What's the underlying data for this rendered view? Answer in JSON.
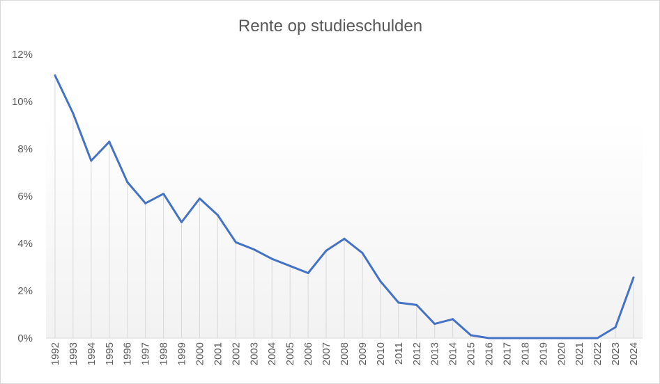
{
  "chart_data": {
    "type": "area",
    "title": "Rente op studieschulden",
    "xlabel": "",
    "ylabel": "",
    "ylim": [
      0,
      12
    ],
    "y_ticks": [
      0,
      2,
      4,
      6,
      8,
      10,
      12
    ],
    "y_tick_labels": [
      "0%",
      "2%",
      "4%",
      "6%",
      "8%",
      "10%",
      "12%"
    ],
    "x": [
      "1992",
      "1993",
      "1994",
      "1995",
      "1996",
      "1997",
      "1998",
      "1999",
      "2000",
      "2001",
      "2002",
      "2003",
      "2004",
      "2005",
      "2006",
      "2007",
      "2008",
      "2009",
      "2010",
      "2011",
      "2012",
      "2013",
      "2014",
      "2015",
      "2016",
      "2017",
      "2018",
      "2019",
      "2020",
      "2021",
      "2022",
      "2023",
      "2024"
    ],
    "series": [
      {
        "values": [
          11.1,
          9.5,
          7.5,
          8.3,
          6.6,
          5.7,
          6.1,
          4.9,
          5.9,
          5.2,
          4.05,
          3.75,
          3.35,
          3.05,
          2.75,
          3.7,
          4.2,
          3.6,
          2.4,
          1.5,
          1.4,
          0.6,
          0.8,
          0.12,
          0.0,
          0.0,
          0.0,
          0.0,
          0.0,
          0.0,
          0.0,
          0.46,
          2.56
        ]
      }
    ],
    "grid": false,
    "drop_lines": true,
    "legend": "none",
    "colors": {
      "line": "#4472c4",
      "drop_line": "#d9d9d9",
      "axis": "#d9d9d9",
      "text": "#595959"
    }
  }
}
